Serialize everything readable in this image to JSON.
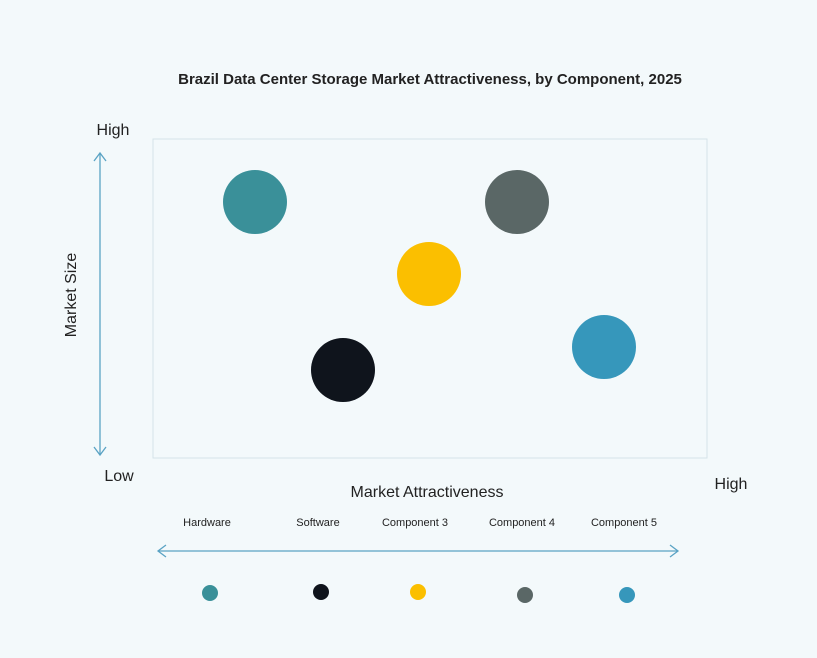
{
  "title": "Brazil Data Center Storage Market Attractiveness,  by Component, 2025",
  "y_axis": {
    "label": "Market Size",
    "high": "High",
    "low": "Low"
  },
  "x_axis": {
    "label": "Market Attractiveness",
    "high": "High"
  },
  "items": [
    {
      "label": "Hardware",
      "color": "#3a9099"
    },
    {
      "label": "Software",
      "color": "#0f141c"
    },
    {
      "label": "Component 3",
      "color": "#fbbf00"
    },
    {
      "label": "Component 4",
      "color": "#5a6766"
    },
    {
      "label": "Component 5",
      "color": "#3697bb"
    }
  ]
}
